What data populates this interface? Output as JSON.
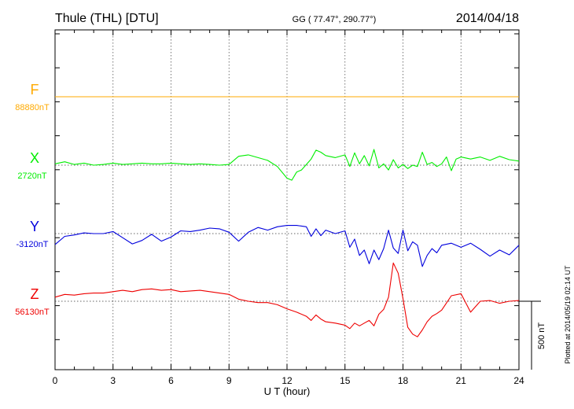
{
  "header": {
    "station": "Thule (THL)  [DTU]",
    "coords": "GG ( 77.47°, 290.77°)",
    "date": "2014/04/18"
  },
  "side_note": "Plotted at 2014/05/19 02:14 UT",
  "scale_label": "500 nT",
  "chart_data": {
    "type": "line",
    "xlabel": "U T (hour)",
    "xlim": [
      0,
      24
    ],
    "x_ticks": [
      0,
      3,
      6,
      9,
      12,
      15,
      18,
      21,
      24
    ],
    "x_tick_labels": [
      "0",
      "3",
      "6",
      "9",
      "12",
      "15",
      "18",
      "21",
      "24"
    ],
    "y_unit": "nT",
    "scale_bar_nT": 500,
    "grid": true,
    "series": [
      {
        "name": "F",
        "baseline_label": "88880nT",
        "color": "#ffaa00",
        "x": [
          0,
          24
        ],
        "deviation_nT": [
          0,
          0
        ]
      },
      {
        "name": "X",
        "baseline_label": "2720nT",
        "color": "#00ee00",
        "x": [
          0,
          0.5,
          1,
          1.5,
          2,
          2.5,
          3,
          3.5,
          4,
          4.5,
          5,
          5.5,
          6,
          6.5,
          7,
          7.5,
          8,
          8.5,
          9,
          9.5,
          10,
          10.5,
          11,
          11.5,
          12,
          12.25,
          12.5,
          12.75,
          13,
          13.25,
          13.5,
          13.75,
          14,
          14.5,
          15,
          15.25,
          15.5,
          15.75,
          16,
          16.25,
          16.5,
          16.75,
          17,
          17.25,
          17.5,
          17.75,
          18,
          18.25,
          18.5,
          18.75,
          19,
          19.25,
          19.5,
          19.75,
          20,
          20.25,
          20.5,
          20.75,
          21,
          21.5,
          22,
          22.5,
          23,
          23.5,
          24
        ],
        "deviation_nT": [
          10,
          25,
          5,
          15,
          0,
          5,
          15,
          5,
          10,
          15,
          10,
          10,
          15,
          10,
          5,
          10,
          5,
          0,
          5,
          65,
          75,
          55,
          35,
          -10,
          -95,
          -110,
          -50,
          -35,
          5,
          45,
          110,
          95,
          70,
          55,
          75,
          -10,
          90,
          10,
          70,
          -5,
          115,
          -20,
          10,
          -35,
          40,
          -20,
          5,
          -25,
          0,
          -10,
          95,
          5,
          20,
          -10,
          10,
          60,
          -40,
          45,
          60,
          45,
          60,
          35,
          65,
          40,
          30
        ]
      },
      {
        "name": "Y",
        "baseline_label": "-3120nT",
        "color": "#0000dd",
        "x": [
          0,
          0.5,
          1,
          1.5,
          2,
          2.5,
          3,
          3.5,
          4,
          4.5,
          5,
          5.5,
          6,
          6.5,
          7,
          7.5,
          8,
          8.5,
          9,
          9.5,
          10,
          10.5,
          11,
          11.5,
          12,
          12.5,
          13,
          13.25,
          13.5,
          13.75,
          14,
          14.5,
          15,
          15.25,
          15.5,
          15.75,
          16,
          16.25,
          16.5,
          16.75,
          17,
          17.25,
          17.5,
          17.75,
          18,
          18.25,
          18.5,
          18.75,
          19,
          19.25,
          19.5,
          19.75,
          20,
          20.5,
          21,
          21.5,
          22,
          22.5,
          23,
          23.5,
          24
        ],
        "deviation_nT": [
          -80,
          -20,
          -10,
          5,
          0,
          0,
          15,
          -30,
          -75,
          -50,
          -5,
          -55,
          -25,
          20,
          15,
          25,
          40,
          35,
          10,
          -55,
          10,
          45,
          25,
          50,
          60,
          60,
          50,
          -20,
          35,
          -15,
          25,
          0,
          20,
          -100,
          -40,
          -160,
          -120,
          -220,
          -120,
          -190,
          -110,
          25,
          -105,
          -145,
          25,
          -125,
          -60,
          -85,
          -240,
          -160,
          -110,
          -140,
          -85,
          -70,
          -100,
          -70,
          -115,
          -165,
          -120,
          -155,
          -85
        ]
      },
      {
        "name": "Z",
        "baseline_label": "56130nT",
        "color": "#ee0000",
        "x": [
          0,
          0.5,
          1,
          1.5,
          2,
          2.5,
          3,
          3.5,
          4,
          4.5,
          5,
          5.5,
          6,
          6.5,
          7,
          7.5,
          8,
          8.5,
          9,
          9.5,
          10,
          10.5,
          11,
          11.5,
          12,
          12.5,
          13,
          13.25,
          13.5,
          13.75,
          14,
          14.5,
          15,
          15.25,
          15.5,
          15.75,
          16,
          16.25,
          16.5,
          16.75,
          17,
          17.25,
          17.5,
          17.75,
          18,
          18.25,
          18.5,
          18.75,
          19,
          19.25,
          19.5,
          19.75,
          20,
          20.5,
          21,
          21.5,
          22,
          22.5,
          23,
          23.5,
          24
        ],
        "deviation_nT": [
          30,
          50,
          45,
          55,
          60,
          60,
          70,
          80,
          70,
          85,
          90,
          80,
          85,
          70,
          75,
          80,
          70,
          60,
          50,
          15,
          0,
          -10,
          -10,
          -25,
          -55,
          -80,
          -110,
          -140,
          -100,
          -130,
          -150,
          -160,
          -175,
          -200,
          -160,
          -180,
          -160,
          -140,
          -180,
          -95,
          -60,
          30,
          280,
          205,
          20,
          -190,
          -240,
          -260,
          -210,
          -150,
          -110,
          -90,
          -65,
          40,
          55,
          -80,
          0,
          5,
          -15,
          0,
          5
        ]
      }
    ]
  }
}
